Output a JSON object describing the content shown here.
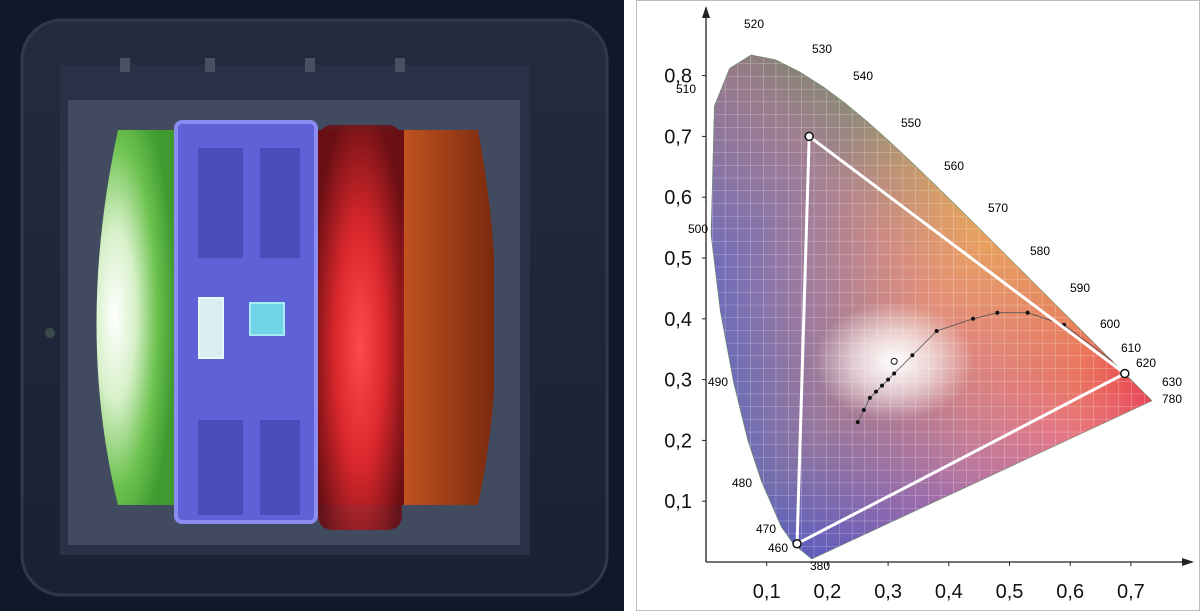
{
  "photo": {
    "description_free": true,
    "colors": {
      "background": "#141a2b",
      "green_die": "#58c04a",
      "blue_die": "#5a5ccc",
      "red_die": "#c22027",
      "orange_die": "#a8421b"
    }
  },
  "cie_diagram": {
    "x_ticks": [
      "0,1",
      "0,2",
      "0,3",
      "0,4",
      "0,5",
      "0,6",
      "0,7"
    ],
    "y_ticks": [
      "0,1",
      "0,2",
      "0,3",
      "0,4",
      "0,5",
      "0,6",
      "0,7",
      "0,8"
    ],
    "wavelength_labels": [
      "380",
      "460",
      "470",
      "480",
      "490",
      "500",
      "510",
      "520",
      "530",
      "540",
      "550",
      "560",
      "570",
      "580",
      "590",
      "600",
      "610",
      "620",
      "630",
      "780"
    ],
    "gamut_triangle": [
      {
        "x": 0.17,
        "y": 0.7
      },
      {
        "x": 0.69,
        "y": 0.31
      },
      {
        "x": 0.15,
        "y": 0.03
      }
    ],
    "planckian_points": [
      {
        "x": 0.25,
        "y": 0.23
      },
      {
        "x": 0.26,
        "y": 0.25
      },
      {
        "x": 0.27,
        "y": 0.27
      },
      {
        "x": 0.28,
        "y": 0.28
      },
      {
        "x": 0.29,
        "y": 0.29
      },
      {
        "x": 0.3,
        "y": 0.3
      },
      {
        "x": 0.31,
        "y": 0.31
      },
      {
        "x": 0.34,
        "y": 0.34
      },
      {
        "x": 0.38,
        "y": 0.38
      },
      {
        "x": 0.44,
        "y": 0.4
      },
      {
        "x": 0.48,
        "y": 0.41
      },
      {
        "x": 0.53,
        "y": 0.41
      },
      {
        "x": 0.59,
        "y": 0.39
      }
    ],
    "white_point": {
      "x": 0.31,
      "y": 0.33
    }
  }
}
